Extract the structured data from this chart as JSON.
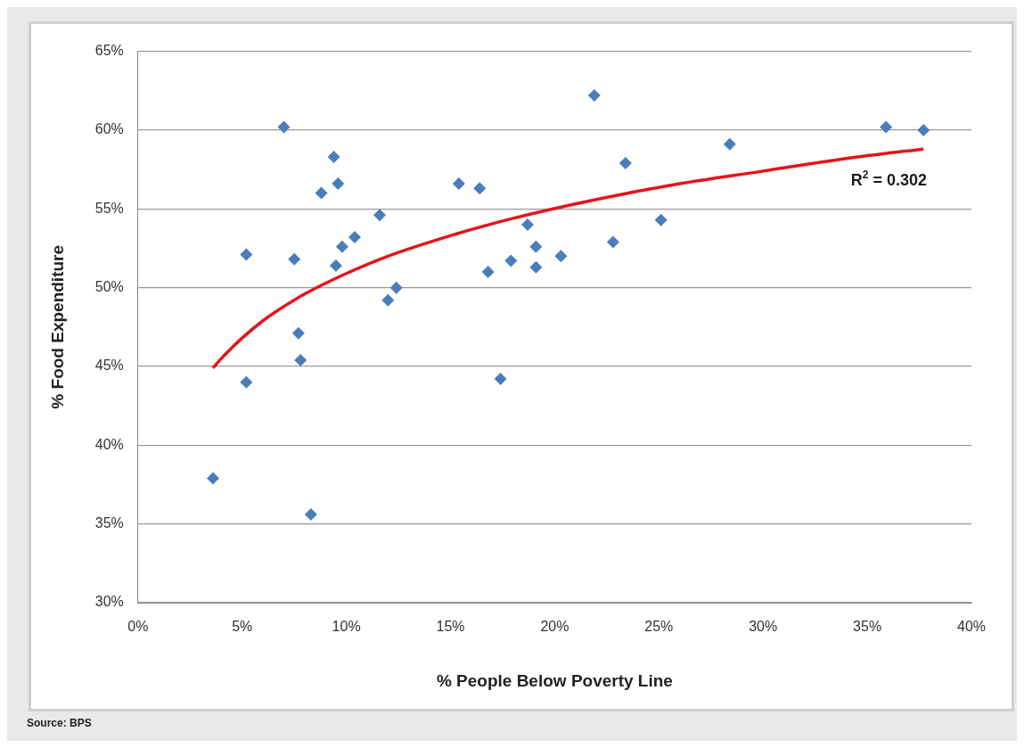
{
  "chart_data": {
    "type": "scatter",
    "xlabel": "% People Below Poverty Line",
    "ylabel": "% Food Expenditure",
    "xlim": [
      0,
      40
    ],
    "xticks": [
      {
        "value": 0,
        "label": "0%"
      },
      {
        "value": 5,
        "label": "5%"
      },
      {
        "value": 10,
        "label": "10%"
      },
      {
        "value": 15,
        "label": "15%"
      },
      {
        "value": 20,
        "label": "20%"
      },
      {
        "value": 25,
        "label": "25%"
      },
      {
        "value": 30,
        "label": "30%"
      },
      {
        "value": 35,
        "label": "35%"
      },
      {
        "value": 40,
        "label": "40%"
      }
    ],
    "ylim": [
      30,
      65
    ],
    "yticks": [
      {
        "value": 30,
        "label": "30%"
      },
      {
        "value": 35,
        "label": "35%"
      },
      {
        "value": 40,
        "label": "40%"
      },
      {
        "value": 45,
        "label": "45%"
      },
      {
        "value": 50,
        "label": "50%"
      },
      {
        "value": 55,
        "label": "55%"
      },
      {
        "value": 60,
        "label": "60%"
      },
      {
        "value": 65,
        "label": "65%"
      }
    ],
    "grid": "y",
    "legend": false,
    "marker": "diamond",
    "series": [
      {
        "color": "#4a7ebb",
        "x": [
          3.6,
          5.2,
          5.2,
          7.0,
          7.5,
          7.7,
          7.8,
          8.3,
          8.8,
          9.4,
          9.6,
          9.5,
          9.8,
          10.4,
          11.6,
          12.0,
          12.4,
          15.4,
          16.4,
          16.8,
          17.4,
          17.9,
          18.7,
          19.1,
          19.1,
          20.3,
          21.9,
          22.8,
          23.4,
          25.1,
          28.4,
          35.9,
          37.7
        ],
        "values": [
          37.9,
          52.1,
          44.0,
          60.2,
          51.8,
          47.1,
          45.4,
          35.6,
          56.0,
          58.3,
          56.6,
          51.4,
          52.6,
          53.2,
          54.6,
          49.2,
          50.0,
          56.6,
          56.3,
          51.0,
          44.2,
          51.7,
          54.0,
          52.6,
          51.3,
          52.0,
          62.2,
          52.9,
          57.9,
          54.3,
          59.1,
          60.2,
          60.0
        ]
      },
      {
        "type": "line",
        "color": "#e3151b",
        "marker": "none",
        "line_style": "solid",
        "x": [
          3.6,
          4,
          5,
          6,
          7,
          8,
          10,
          12,
          15,
          18,
          22,
          26,
          30,
          34,
          37.7
        ],
        "values": [
          44.9,
          45.5,
          46.8,
          47.9,
          48.8,
          49.6,
          50.9,
          52.0,
          53.3,
          54.4,
          55.6,
          56.6,
          57.4,
          58.2,
          58.8
        ]
      }
    ],
    "annotations": [
      "R$^{2}$ = 0.302",
      "Source: BPS"
    ]
  }
}
